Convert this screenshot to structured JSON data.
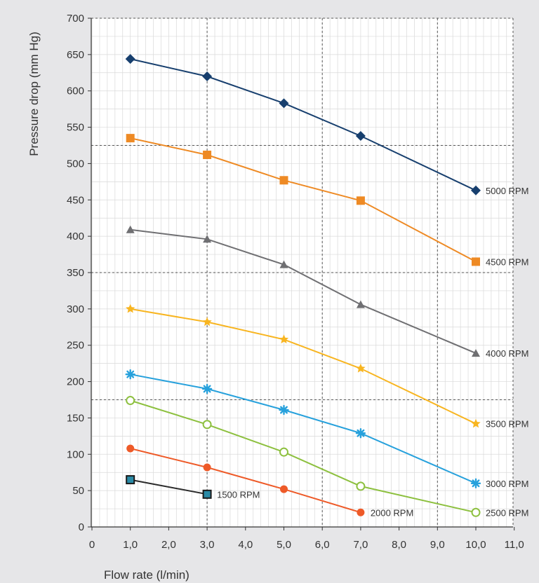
{
  "chart_data": {
    "type": "line",
    "title": "",
    "xlabel": "Flow rate (l/min)",
    "ylabel": "Pressure drop (mm Hg)",
    "xlim": [
      0,
      11
    ],
    "ylim": [
      0,
      700
    ],
    "x_ticks": [
      0,
      1,
      2,
      3,
      4,
      5,
      6,
      7,
      8,
      9,
      10,
      11
    ],
    "x_tick_labels": [
      "0",
      "1,0",
      "2,0",
      "3,0",
      "4,0",
      "5,0",
      "6,0",
      "7,0",
      "8,0",
      "9,0",
      "10,0",
      "11,0"
    ],
    "y_ticks": [
      0,
      50,
      100,
      150,
      200,
      250,
      300,
      350,
      400,
      450,
      500,
      550,
      600,
      650,
      700
    ],
    "y_tick_labels": [
      "0",
      "50",
      "100",
      "150",
      "200",
      "250",
      "300",
      "350",
      "400",
      "450",
      "500",
      "550",
      "600",
      "650",
      "700"
    ],
    "grid": true,
    "legend": "labels at line ends",
    "series": [
      {
        "name": "5000 RPM",
        "color": "#173f6e",
        "marker": "diamond",
        "x": [
          1,
          3,
          5,
          7,
          10
        ],
        "y": [
          644,
          620,
          583,
          538,
          463
        ]
      },
      {
        "name": "4500 RPM",
        "color": "#ee8a24",
        "marker": "square",
        "x": [
          1,
          3,
          5,
          7,
          10
        ],
        "y": [
          535,
          512,
          477,
          449,
          365
        ]
      },
      {
        "name": "4000 RPM",
        "color": "#6f6f72",
        "marker": "triangle",
        "x": [
          1,
          3,
          5,
          7,
          10
        ],
        "y": [
          409,
          396,
          361,
          306,
          239
        ]
      },
      {
        "name": "3500 RPM",
        "color": "#f8b520",
        "marker": "star",
        "x": [
          1,
          3,
          5,
          7,
          10
        ],
        "y": [
          300,
          282,
          258,
          218,
          142
        ]
      },
      {
        "name": "3000 RPM",
        "color": "#27a1dc",
        "marker": "asterisk",
        "x": [
          1,
          3,
          5,
          7,
          10
        ],
        "y": [
          210,
          190,
          161,
          129,
          60
        ]
      },
      {
        "name": "2500 RPM",
        "color": "#8dc03f",
        "marker": "open-circle",
        "x": [
          1,
          3,
          5,
          7,
          10
        ],
        "y": [
          174,
          141,
          103,
          56,
          20
        ]
      },
      {
        "name": "2000 RPM",
        "color": "#ee5a28",
        "marker": "circle",
        "x": [
          1,
          3,
          5,
          7
        ],
        "y": [
          108,
          82,
          52,
          20
        ]
      },
      {
        "name": "1500 RPM",
        "color": "#2a2a2a",
        "marker": "teal-square",
        "x": [
          1,
          3
        ],
        "y": [
          65,
          45
        ]
      }
    ]
  }
}
